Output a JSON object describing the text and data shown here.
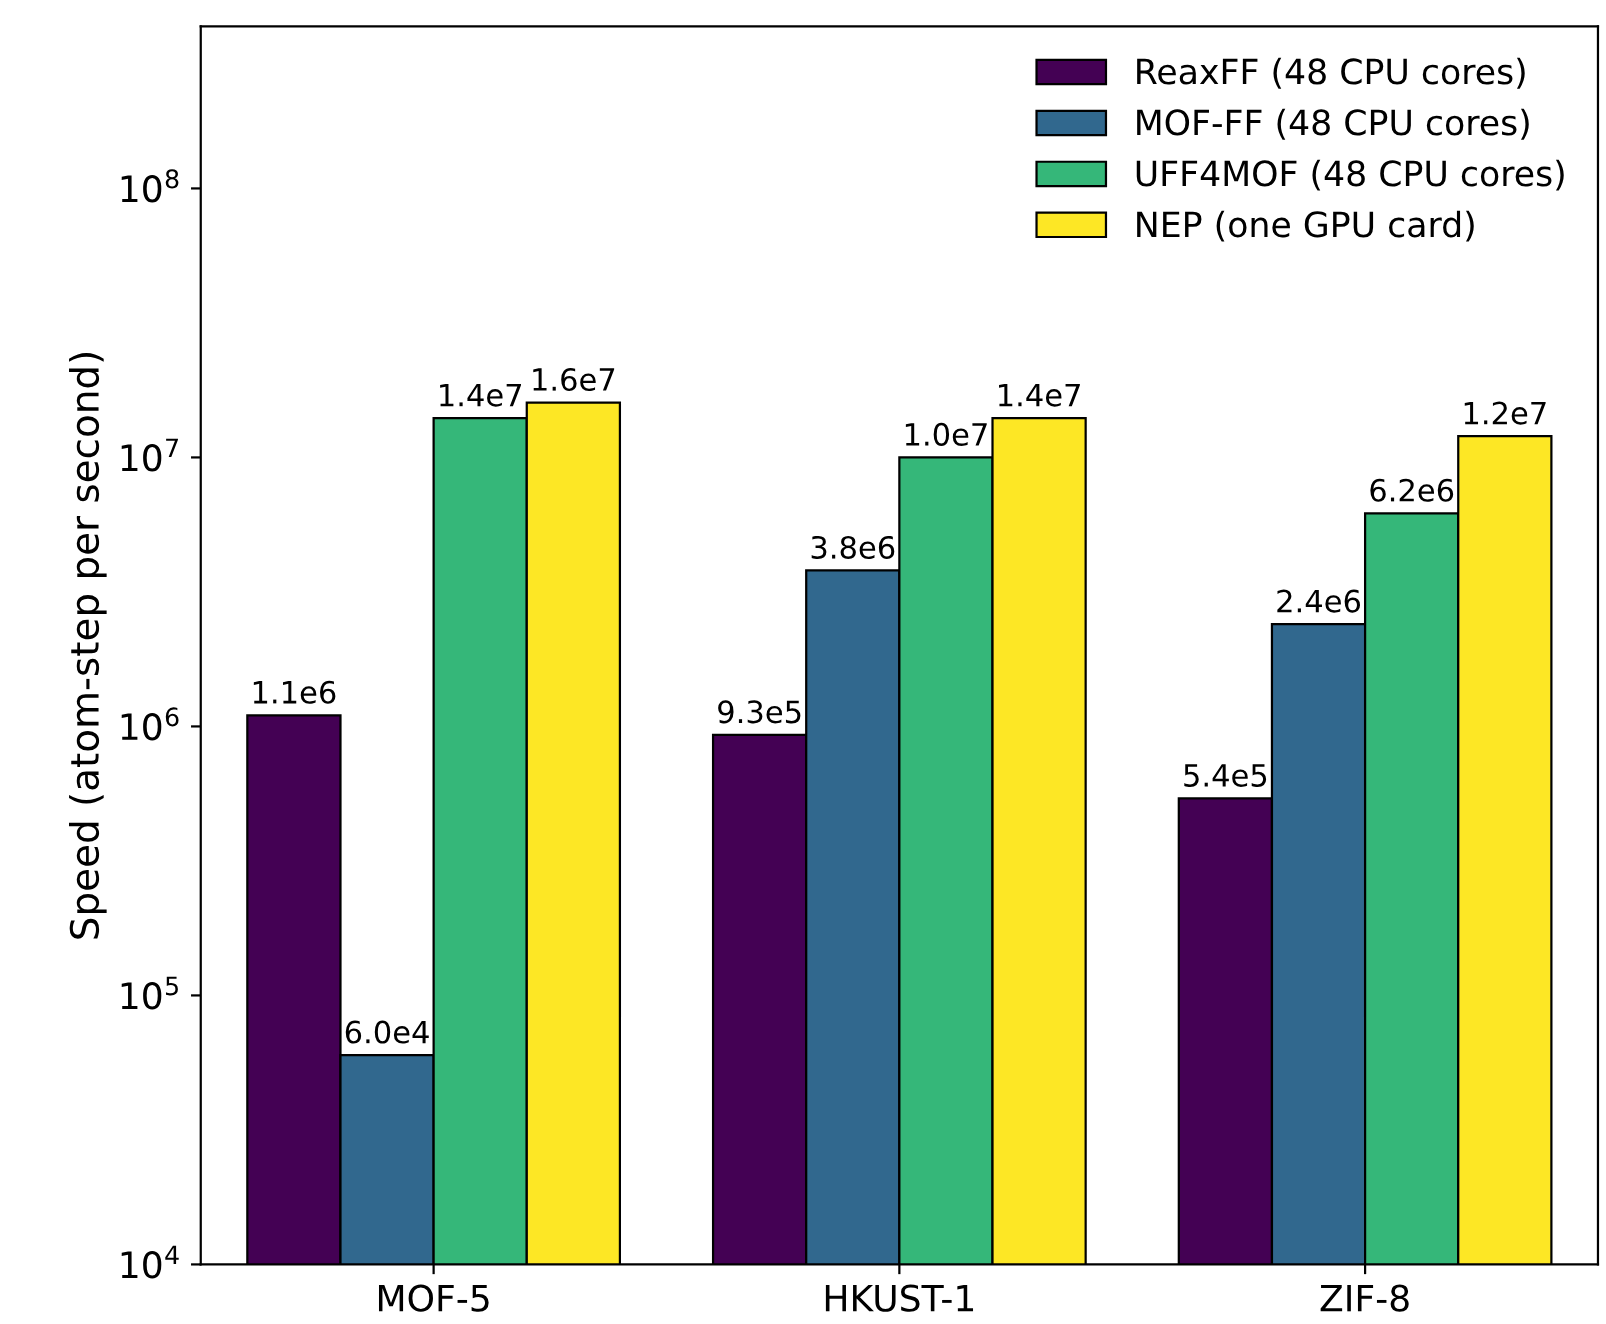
{
  "chart_data": {
    "type": "bar",
    "ylabel": "Speed (atom-step per second)",
    "categories": [
      "MOF-5",
      "HKUST-1",
      "ZIF-8"
    ],
    "log": "y",
    "ylim": [
      10000,
      400000000
    ],
    "yticks": [
      {
        "value": 10000,
        "label": "10$^{4}$"
      },
      {
        "value": 100000,
        "label": "10$^{5}$"
      },
      {
        "value": 1000000,
        "label": "10$^{6}$"
      },
      {
        "value": 10000000,
        "label": "10$^{7}$"
      },
      {
        "value": 100000000,
        "label": "10$^{8}$"
      }
    ],
    "legend": "top right",
    "grid": false,
    "series": [
      {
        "name": "ReaxFF (48 CPU cores)",
        "color": "#440154",
        "values": [
          1100000,
          930000,
          540000
        ],
        "value_labels": [
          "1.1e6",
          "9.3e5",
          "5.4e5"
        ]
      },
      {
        "name": "MOF-FF (48 CPU cores)",
        "color": "#31688e",
        "values": [
          60000,
          3800000,
          2400000
        ],
        "value_labels": [
          "6.0e4",
          "3.8e6",
          "2.4e6"
        ]
      },
      {
        "name": "UFF4MOF (48 CPU cores)",
        "color": "#35b779",
        "values": [
          14000000,
          10000000,
          6200000
        ],
        "value_labels": [
          "1.4e7",
          "1.0e7",
          "6.2e6"
        ]
      },
      {
        "name": "NEP (one GPU card)",
        "color": "#fde725",
        "values": [
          16000000,
          14000000,
          12000000
        ],
        "value_labels": [
          "1.6e7",
          "1.4e7",
          "1.2e7"
        ]
      }
    ]
  }
}
